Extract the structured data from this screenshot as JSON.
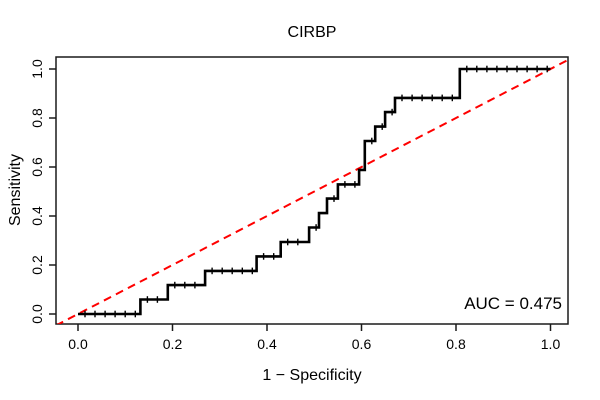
{
  "title": "CIRBP",
  "axes": {
    "xlabel": "1 − Specificity",
    "ylabel": "Sensitivity",
    "x_tick_labels": [
      "0.0",
      "0.2",
      "0.4",
      "0.6",
      "0.8",
      "1.0"
    ],
    "y_tick_labels": [
      "0.0",
      "0.2",
      "0.4",
      "0.6",
      "0.8",
      "1.0"
    ]
  },
  "annotation": {
    "auc_label": "AUC = 0.475"
  },
  "colors": {
    "curve": "#000000",
    "diagonal": "#ff0000",
    "frame": "#1a1a1a",
    "background": "#ffffff",
    "text": "#000000"
  },
  "chart_data": {
    "type": "line",
    "subtype": "roc-step-curve",
    "title": "CIRBP",
    "xlabel": "1 − Specificity",
    "ylabel": "Sensitivity",
    "xlim": [
      0,
      1
    ],
    "ylim": [
      0,
      1
    ],
    "x_ticks": [
      0.0,
      0.2,
      0.4,
      0.6,
      0.8,
      1.0
    ],
    "y_ticks": [
      0.0,
      0.2,
      0.4,
      0.6,
      0.8,
      1.0
    ],
    "grid": false,
    "legend": "none",
    "annotations": [
      {
        "text": "AUC = 0.475",
        "x": 0.98,
        "y": 0.05,
        "align": "right"
      }
    ],
    "series": [
      {
        "name": "ROC step curve",
        "color": "#000000",
        "style": "solid-step-with-point-ticks",
        "line_width": 2.6,
        "points": [
          [
            0.0,
            0.0
          ],
          [
            0.132,
            0.0
          ],
          [
            0.132,
            0.059
          ],
          [
            0.19,
            0.059
          ],
          [
            0.19,
            0.118
          ],
          [
            0.269,
            0.118
          ],
          [
            0.269,
            0.176
          ],
          [
            0.378,
            0.176
          ],
          [
            0.378,
            0.235
          ],
          [
            0.429,
            0.235
          ],
          [
            0.429,
            0.294
          ],
          [
            0.489,
            0.294
          ],
          [
            0.489,
            0.353
          ],
          [
            0.51,
            0.353
          ],
          [
            0.51,
            0.412
          ],
          [
            0.527,
            0.412
          ],
          [
            0.527,
            0.471
          ],
          [
            0.55,
            0.471
          ],
          [
            0.55,
            0.529
          ],
          [
            0.595,
            0.529
          ],
          [
            0.595,
            0.588
          ],
          [
            0.607,
            0.588
          ],
          [
            0.607,
            0.706
          ],
          [
            0.629,
            0.706
          ],
          [
            0.629,
            0.765
          ],
          [
            0.65,
            0.765
          ],
          [
            0.65,
            0.824
          ],
          [
            0.671,
            0.824
          ],
          [
            0.671,
            0.882
          ],
          [
            0.808,
            0.882
          ],
          [
            0.808,
            1.0
          ],
          [
            1.0,
            1.0
          ]
        ]
      },
      {
        "name": "chance diagonal",
        "color": "#ff0000",
        "style": "dashed",
        "line_width": 2,
        "points": [
          [
            0,
            0
          ],
          [
            1,
            1
          ]
        ]
      }
    ]
  }
}
